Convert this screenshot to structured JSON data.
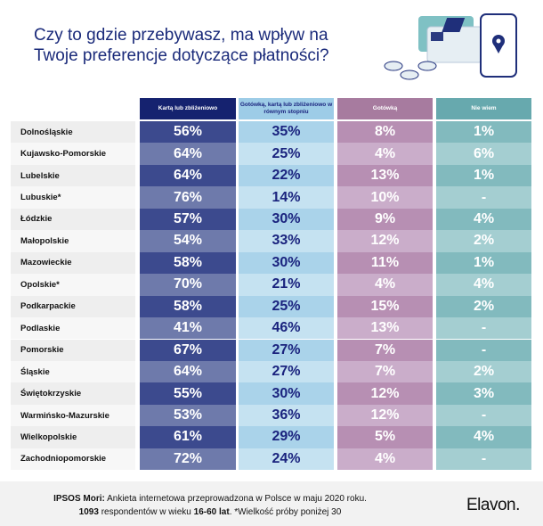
{
  "title": "Czy to gdzie przebywasz, ma wpływ na Twoje preferencje dotyczące płatności?",
  "colors": {
    "col1": [
      "#3c4a8e",
      "#6e7aab",
      "#15226f"
    ],
    "col2": [
      "#aad3ea",
      "#c5e2f1",
      "#9dcce7"
    ],
    "col3": [
      "#b78fb3",
      "#caadca",
      "#a77b9f"
    ],
    "col4": [
      "#82babe",
      "#a4ced1",
      "#67a9ae"
    ],
    "names": [
      "#eeeeee",
      "#f7f7f7"
    ]
  },
  "chart_data": {
    "type": "table",
    "columns": [
      "Kartą lub zbliżeniowo",
      "Gotówką, kartą lub zbliżeniowo w równym stopniu",
      "Gotówką",
      "Nie wiem"
    ],
    "rows": [
      {
        "region": "Dolnośląskie",
        "values": [
          "56%",
          "35%",
          "8%",
          "1%"
        ]
      },
      {
        "region": "Kujawsko-Pomorskie",
        "values": [
          "64%",
          "25%",
          "4%",
          "6%"
        ]
      },
      {
        "region": "Lubelskie",
        "values": [
          "64%",
          "22%",
          "13%",
          "1%"
        ]
      },
      {
        "region": "Lubuskie*",
        "values": [
          "76%",
          "14%",
          "10%",
          "-"
        ]
      },
      {
        "region": "Łódzkie",
        "values": [
          "57%",
          "30%",
          "9%",
          "4%"
        ]
      },
      {
        "region": "Małopolskie",
        "values": [
          "54%",
          "33%",
          "12%",
          "2%"
        ]
      },
      {
        "region": "Mazowieckie",
        "values": [
          "58%",
          "30%",
          "11%",
          "1%"
        ]
      },
      {
        "region": "Opolskie*",
        "values": [
          "70%",
          "21%",
          "4%",
          "4%"
        ]
      },
      {
        "region": "Podkarpackie",
        "values": [
          "58%",
          "25%",
          "15%",
          "2%"
        ]
      },
      {
        "region": "Podlaskie",
        "values": [
          "41%",
          "46%",
          "13%",
          "-"
        ]
      },
      {
        "region": "Pomorskie",
        "values": [
          "67%",
          "27%",
          "7%",
          "-"
        ]
      },
      {
        "region": "Śląskie",
        "values": [
          "64%",
          "27%",
          "7%",
          "2%"
        ]
      },
      {
        "region": "Świętokrzyskie",
        "values": [
          "55%",
          "30%",
          "12%",
          "3%"
        ]
      },
      {
        "region": "Warmińsko-Mazurskie",
        "values": [
          "53%",
          "36%",
          "12%",
          "-"
        ]
      },
      {
        "region": "Wielkopolskie",
        "values": [
          "61%",
          "29%",
          "5%",
          "4%"
        ]
      },
      {
        "region": "Zachodniopomorskie",
        "values": [
          "72%",
          "24%",
          "4%",
          "-"
        ]
      }
    ]
  },
  "footer": {
    "source_label": "IPSOS Mori:",
    "line1": " Ankieta internetowa przeprowadzona w Polsce w maju 2020 roku.",
    "count": "1093",
    "line2a": " respondentów w wieku ",
    "age": "16-60 lat",
    "line2b": ". *Wielkość próby poniżej 30",
    "logo": "Elavon."
  }
}
